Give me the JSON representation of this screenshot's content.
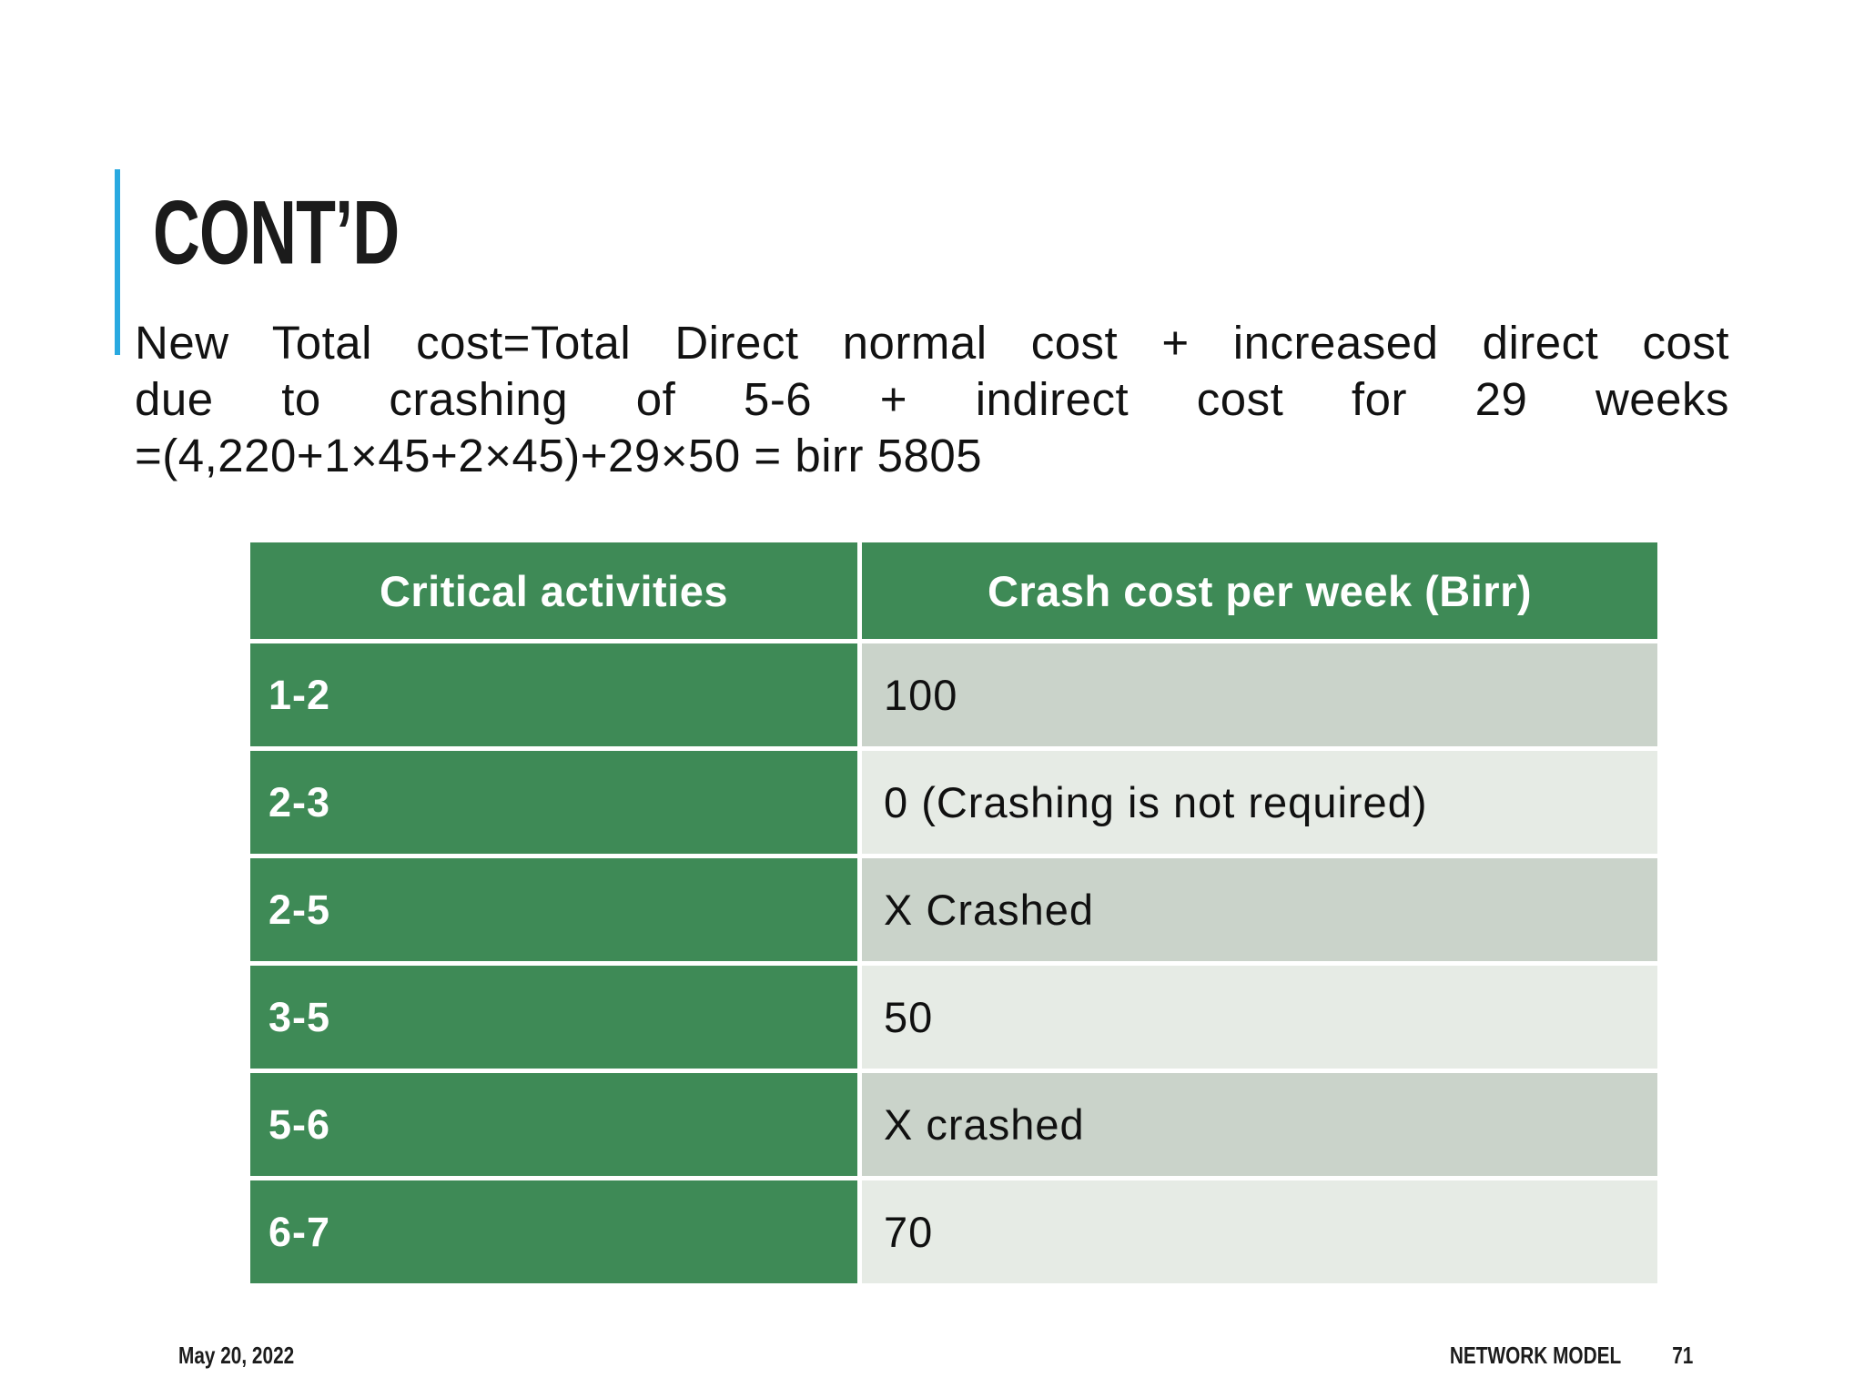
{
  "slide": {
    "title": "CONT’D",
    "body": {
      "lines": [
        "New Total cost=Total Direct normal cost + increased direct cost",
        "due to crashing of 5-6 + indirect cost for 29 weeks",
        "=(4,220+1×45+2×45)+29×50 = birr 5805"
      ]
    },
    "colors": {
      "accent_bar": "#29A9E0",
      "table_green": "#3E8A56",
      "band_dark": "#CAD3CA",
      "band_light": "#E6EBE5"
    }
  },
  "table": {
    "headers": [
      "Critical activities",
      "Crash cost per week (Birr)"
    ],
    "rows": [
      {
        "activity": "1-2",
        "cost": "100"
      },
      {
        "activity": "2-3",
        "cost": "0 (Crashing is not required)"
      },
      {
        "activity": "2-5",
        "cost": "X Crashed"
      },
      {
        "activity": "3-5",
        "cost": "50"
      },
      {
        "activity": "5-6",
        "cost": "X crashed"
      },
      {
        "activity": "6-7",
        "cost": "70"
      }
    ]
  },
  "footer": {
    "date": "May 20, 2022",
    "label": "NETWORK MODEL",
    "page": "71"
  }
}
